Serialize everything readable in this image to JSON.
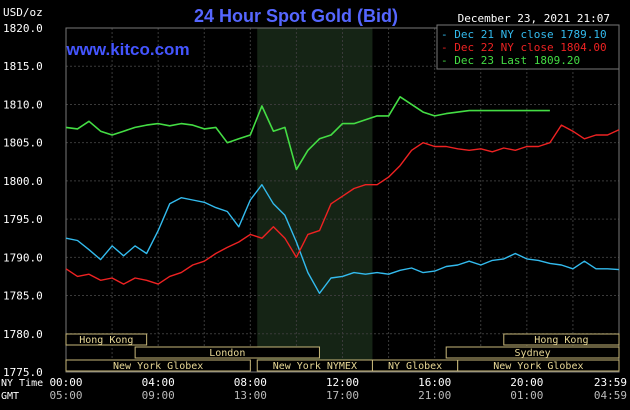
{
  "chart_data": {
    "type": "line",
    "title": "24 Hour Spot Gold (Bid)",
    "date": "December 23, 2021 21:07",
    "source": "www.kitco.com",
    "unit_label": "USD/oz",
    "ylim": [
      1775,
      1820
    ],
    "yticks": [
      "1820.0",
      "1815.0",
      "1810.0",
      "1805.0",
      "1800.0",
      "1795.0",
      "1790.0",
      "1785.0",
      "1780.0",
      "1775.0"
    ],
    "xlabel_rows": [
      {
        "label": "NY Time",
        "ticks": [
          "00:00",
          "04:00",
          "08:00",
          "12:00",
          "16:00",
          "20:00",
          "23:59"
        ]
      },
      {
        "label": "GMT",
        "ticks": [
          "05:00",
          "09:00",
          "13:00",
          "17:00",
          "21:00",
          "01:00",
          "04:59"
        ]
      }
    ],
    "series": [
      {
        "name": "Dec 21 NY close 1789.10",
        "color": "#33bbee",
        "x": [
          0,
          0.5,
          1,
          1.5,
          2,
          2.5,
          3,
          3.5,
          4,
          4.5,
          5,
          5.5,
          6,
          6.5,
          7,
          7.5,
          8,
          8.5,
          9,
          9.5,
          10,
          10.5,
          11,
          11.5,
          12,
          12.5,
          13,
          13.5,
          14,
          14.5,
          15,
          15.5,
          16,
          16.5,
          17,
          17.5,
          18,
          18.5,
          19,
          19.5,
          20,
          20.5,
          21,
          21.5,
          22,
          22.5,
          23,
          23.5,
          24
        ],
        "y": [
          1792.5,
          1792.2,
          1791.0,
          1789.7,
          1791.5,
          1790.2,
          1791.5,
          1790.5,
          1793.5,
          1797.0,
          1797.8,
          1797.5,
          1797.2,
          1796.5,
          1796.0,
          1794.0,
          1797.5,
          1799.5,
          1797.0,
          1795.5,
          1792.0,
          1788.0,
          1785.3,
          1787.3,
          1787.5,
          1788.0,
          1787.8,
          1788.0,
          1787.8,
          1788.3,
          1788.6,
          1788.0,
          1788.2,
          1788.8,
          1789.0,
          1789.5,
          1789.0,
          1789.6,
          1789.8,
          1790.5,
          1789.8,
          1789.6,
          1789.2,
          1789.0,
          1788.5,
          1789.5,
          1788.5,
          1788.5,
          1788.4
        ]
      },
      {
        "name": "Dec 22 NY close 1804.00",
        "color": "#ee2222",
        "x": [
          0,
          0.5,
          1,
          1.5,
          2,
          2.5,
          3,
          3.5,
          4,
          4.5,
          5,
          5.5,
          6,
          6.5,
          7,
          7.5,
          8,
          8.5,
          9,
          9.5,
          10,
          10.5,
          11,
          11.5,
          12,
          12.5,
          13,
          13.5,
          14,
          14.5,
          15,
          15.5,
          16,
          16.5,
          17,
          17.5,
          18,
          18.5,
          19,
          19.5,
          20,
          20.5,
          21,
          21.5,
          22,
          22.5,
          23,
          23.5,
          24
        ],
        "y": [
          1788.5,
          1787.5,
          1787.8,
          1787.0,
          1787.3,
          1786.5,
          1787.3,
          1787.0,
          1786.5,
          1787.5,
          1788.0,
          1789.0,
          1789.5,
          1790.5,
          1791.3,
          1792.0,
          1793.0,
          1792.5,
          1794.0,
          1792.5,
          1790.0,
          1793.0,
          1793.5,
          1797.0,
          1798.0,
          1799.0,
          1799.5,
          1799.5,
          1800.5,
          1802.0,
          1804.0,
          1805.0,
          1804.5,
          1804.5,
          1804.2,
          1804.0,
          1804.2,
          1803.8,
          1804.3,
          1804.0,
          1804.5,
          1804.5,
          1805.0,
          1807.3,
          1806.5,
          1805.5,
          1806.0,
          1806.0,
          1806.7
        ]
      },
      {
        "name": "Dec 23 Last 1809.20",
        "color": "#44dd44",
        "x": [
          0,
          0.5,
          1,
          1.5,
          2,
          2.5,
          3,
          3.5,
          4,
          4.5,
          5,
          5.5,
          6,
          6.5,
          7,
          7.5,
          8,
          8.5,
          9,
          9.5,
          10,
          10.5,
          11,
          11.5,
          12,
          12.5,
          13,
          13.5,
          14,
          14.5,
          15,
          15.5,
          16,
          16.5,
          17,
          17.5,
          18,
          18.5,
          19,
          19.5,
          20,
          20.5,
          21
        ],
        "y": [
          1807.0,
          1806.8,
          1807.8,
          1806.5,
          1806.0,
          1806.5,
          1807.0,
          1807.3,
          1807.5,
          1807.2,
          1807.5,
          1807.3,
          1806.8,
          1807.0,
          1805.0,
          1805.5,
          1806.0,
          1809.8,
          1806.5,
          1807.0,
          1801.5,
          1804.0,
          1805.5,
          1806.0,
          1807.5,
          1807.5,
          1808.0,
          1808.5,
          1808.5,
          1811.0,
          1810.0,
          1809.0,
          1808.5,
          1808.8,
          1809.0,
          1809.2,
          1809.2,
          1809.2,
          1809.2,
          1809.2,
          1809.2,
          1809.2,
          1809.2
        ]
      }
    ],
    "sessions": [
      {
        "name": "Hong Kong",
        "start": 0,
        "end": 3.5,
        "start2": 19,
        "end2": 24,
        "row": 0,
        "label_left": "Hong Kong",
        "label_right": "Hong Kong"
      },
      {
        "name": "London",
        "start": 3,
        "end": 11,
        "row": 1
      },
      {
        "name": "Sydney",
        "start": 16.5,
        "end": 24,
        "row": 1
      },
      {
        "name": "New York Globex",
        "start": 0,
        "end": 8,
        "row": 2
      },
      {
        "name": "New York NYMEX",
        "start": 8.3,
        "end": 13.3,
        "row": 2
      },
      {
        "name": "NY Globex",
        "start": 13.3,
        "end": 17,
        "row": 2
      },
      {
        "name": "New York Globex",
        "start": 17,
        "end": 24,
        "row": 2
      }
    ],
    "nymex_highlight": [
      8.3,
      13.3
    ],
    "grid": true
  }
}
